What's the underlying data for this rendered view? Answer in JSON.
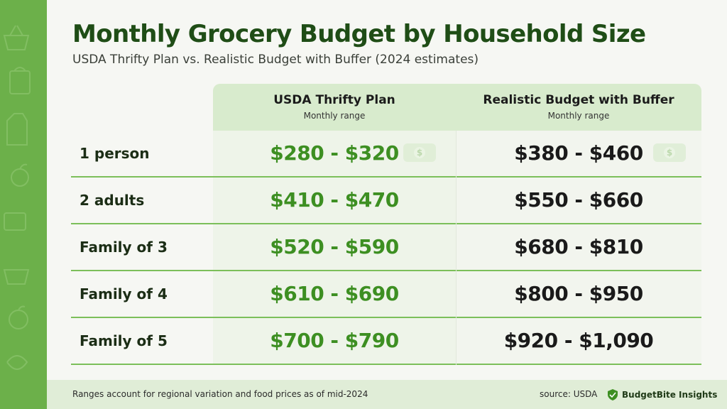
{
  "title": "Monthly Grocery Budget by Household Size",
  "subtitle": "USDA Thrifty Plan vs. Realistic Budget with Buffer (2024 estimates)",
  "columns": [
    {
      "heading": "USDA Thrifty Plan",
      "sub": "Monthly range"
    },
    {
      "heading": "Realistic Budget with Buffer",
      "sub": "Monthly range"
    }
  ],
  "rows": [
    {
      "label": "1 person",
      "usda": "$280 - $320",
      "realistic": "$380 - $460"
    },
    {
      "label": "2 adults",
      "usda": "$410 - $470",
      "realistic": "$550 - $660"
    },
    {
      "label": "Family of 3",
      "usda": "$520 - $590",
      "realistic": "$680 - $810"
    },
    {
      "label": "Family of 4",
      "usda": "$610 - $690",
      "realistic": "$800 - $950"
    },
    {
      "label": "Family of 5",
      "usda": "$700 - $790",
      "realistic": "$920 - $1,090"
    }
  ],
  "footer": {
    "note": "Ranges account for regional variation and food prices as of mid-2024",
    "source": "source: USDA",
    "brand": "BudgetBite Insights"
  },
  "colors": {
    "accent_green": "#3d8f22",
    "title_green": "#1f4d16",
    "rail_green": "#6cb04a",
    "header_band": "#d8ebcd"
  },
  "icons": [
    "basket-icon",
    "grocery-bag-icon",
    "milk-carton-icon",
    "apple-icon",
    "dollar-bill-icon",
    "shield-logo-icon"
  ]
}
